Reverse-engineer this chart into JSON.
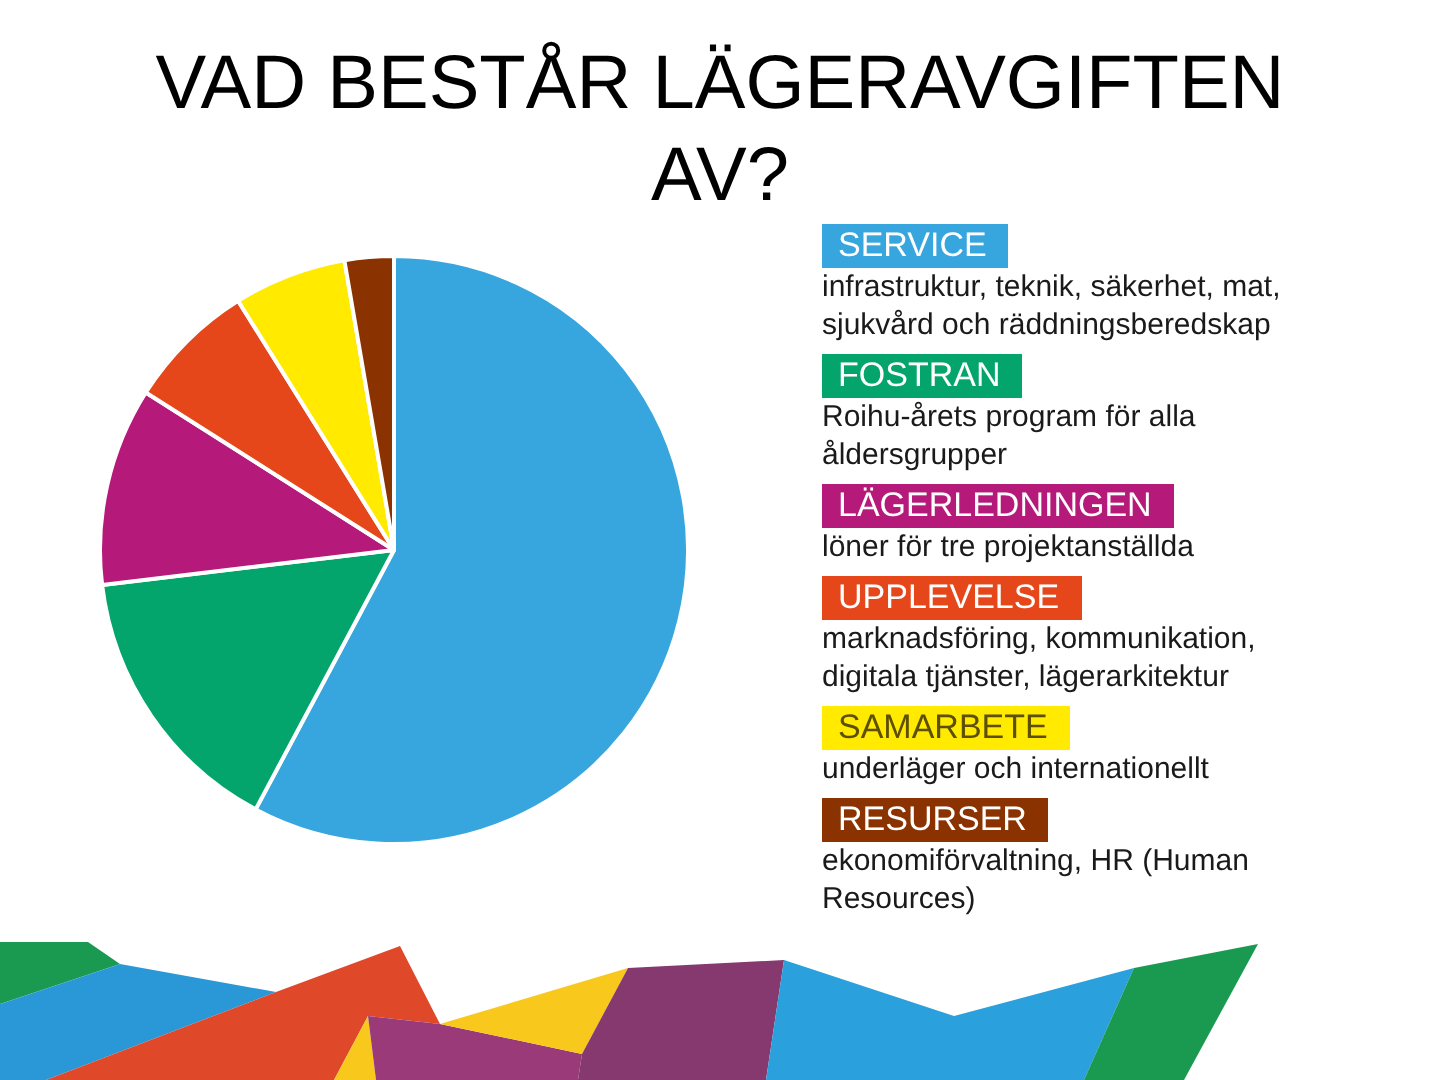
{
  "chart_data": {
    "type": "pie",
    "title": "VAD BESTÅR LÄGERAVGIFTEN AV?",
    "categories": [
      "SERVICE",
      "FOSTRAN",
      "LÄGERLEDNINGEN",
      "UPPLEVELSE",
      "SAMARBETE",
      "RESURSER"
    ],
    "values": [
      57.8,
      15.3,
      10.9,
      7.1,
      6.2,
      2.7
    ],
    "colors": [
      "#38a6de",
      "#04a56c",
      "#b5197a",
      "#e5461a",
      "#ffea00",
      "#8b3300"
    ],
    "legend": "right",
    "annotations": [
      "infrastruktur, teknik, säkerhet, mat, sjukvård och räddningsberedskap",
      "Roihu-årets program för alla åldersgrupper",
      "löner för tre projektanställda",
      "marknadsföring, kommunikation, digitala tjänster, lägerarkitektur",
      "underläger och internationellt",
      "ekonomiförvaltning, HR (Human Resources)"
    ]
  }
}
